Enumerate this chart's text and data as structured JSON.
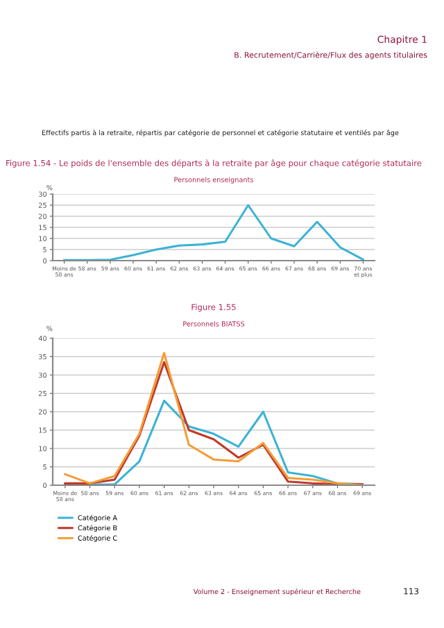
{
  "chart_data": [
    {
      "type": "line",
      "title": "Figure 1.54 - Le poids de l'ensemble des départs à la retraite par âge pour chaque catégorie statutaire",
      "subtitle": "Personnels enseignants",
      "ylabel": "%",
      "annotations": [
        "Chapitre 1",
        "B. Recrutement/Carrière/Flux des agents titulaires",
        "Effectifs partis à la retraite, répartis par catégorie de personnel et catégorie statutaire et ventilés par âge"
      ],
      "categories": [
        "Moins de\n58 ans",
        "58 ans",
        "59 ans",
        "60 ans",
        "61 ans",
        "62 ans",
        "63 ans",
        "64 ans",
        "65 ans",
        "66 ans",
        "67 ans",
        "68 ans",
        "69 ans",
        "70 ans\net plus"
      ],
      "series": [
        {
          "color": "#3bb3d4",
          "values": [
            0.2,
            0.2,
            0.4,
            2.5,
            5,
            6.8,
            7.3,
            8.5,
            25,
            10,
            6.5,
            17.5,
            6,
            0.5
          ]
        }
      ],
      "ylim": [
        0,
        30
      ],
      "yticks": [
        0,
        5,
        10,
        15,
        20,
        25,
        30
      ],
      "grid": "y",
      "marker": "none",
      "line_style": "solid"
    },
    {
      "type": "line",
      "title": "Figure 1.55",
      "subtitle": "Personnels BIATSS",
      "ylabel": "%",
      "annotations": [
        "Volume 2 - Enseignement supérieur et Recherche",
        "113"
      ],
      "categories": [
        "Moins de\n58 ans",
        "58 ans",
        "59 ans",
        "60 ans",
        "61 ans",
        "62 ans",
        "63 ans",
        "64 ans",
        "65 ans",
        "66 ans",
        "67 ans",
        "68 ans",
        "69 ans"
      ],
      "series": [
        {
          "name": "Catégorie A",
          "color": "#3bb3d4",
          "values": [
            0.2,
            0.2,
            0.2,
            6.5,
            23,
            16,
            14,
            10.5,
            20,
            3.5,
            2.5,
            0.5,
            0.3
          ]
        },
        {
          "name": "Catégorie B",
          "color": "#c0392b",
          "values": [
            0.5,
            0.5,
            1.5,
            13.5,
            33.5,
            15,
            12.5,
            7.5,
            11,
            1,
            0.5,
            0.3,
            0.3
          ]
        },
        {
          "name": "Catégorie C",
          "color": "#f39c38",
          "values": [
            3,
            0.5,
            2.5,
            14,
            36,
            11,
            7,
            6.5,
            11.5,
            2,
            1.5,
            0.5,
            0
          ]
        }
      ],
      "ylim": [
        0,
        40
      ],
      "yticks": [
        0,
        5,
        10,
        15,
        20,
        25,
        30,
        35,
        40
      ],
      "grid": "y",
      "legend": "bottom left",
      "marker": "none",
      "line_style": "solid"
    }
  ]
}
